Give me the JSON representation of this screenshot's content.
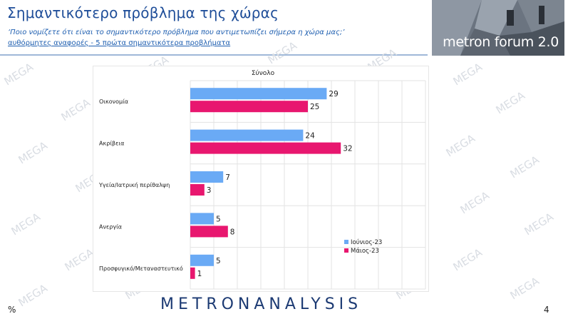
{
  "header": {
    "title": "Σημαντικότερο πρόβλημα της χώρας",
    "subtitle": "‘Ποιο νομίζετε ότι  είναι το σημαντικότερο πρόβλημα που αντιμετωπίζει σήμερα η χώρα μας;’",
    "subtitle2": "αυθόρμητες αναφορές - 5 πρώτα σημαντικότερα προβλήματα"
  },
  "logo": {
    "text": "metron forum 2.0"
  },
  "footer": {
    "brand": "METRONANALYSIS",
    "percent_sign": "%",
    "page_number": "4"
  },
  "watermark": {
    "text": "MEGA"
  },
  "colors": {
    "series1": "#6aaaf5",
    "series2": "#e8176f",
    "title": "#1f4e99"
  },
  "chart_data": {
    "type": "bar",
    "orientation": "horizontal",
    "title": "Σύνολο",
    "categories": [
      "Οικονομία",
      "Ακρίβεια",
      "Υγεία/Ιατρική περίθαλψη",
      "Ανεργία",
      "Προσφυγικό/Μεταναστευτικό"
    ],
    "series": [
      {
        "name": "Ιούνιος-23",
        "values": [
          29,
          24,
          7,
          5,
          5
        ]
      },
      {
        "name": "Μάιος-23",
        "values": [
          25,
          32,
          3,
          8,
          1
        ]
      }
    ],
    "xlim": [
      0,
      50
    ],
    "grid": true,
    "legend_position": "bottom-right"
  }
}
